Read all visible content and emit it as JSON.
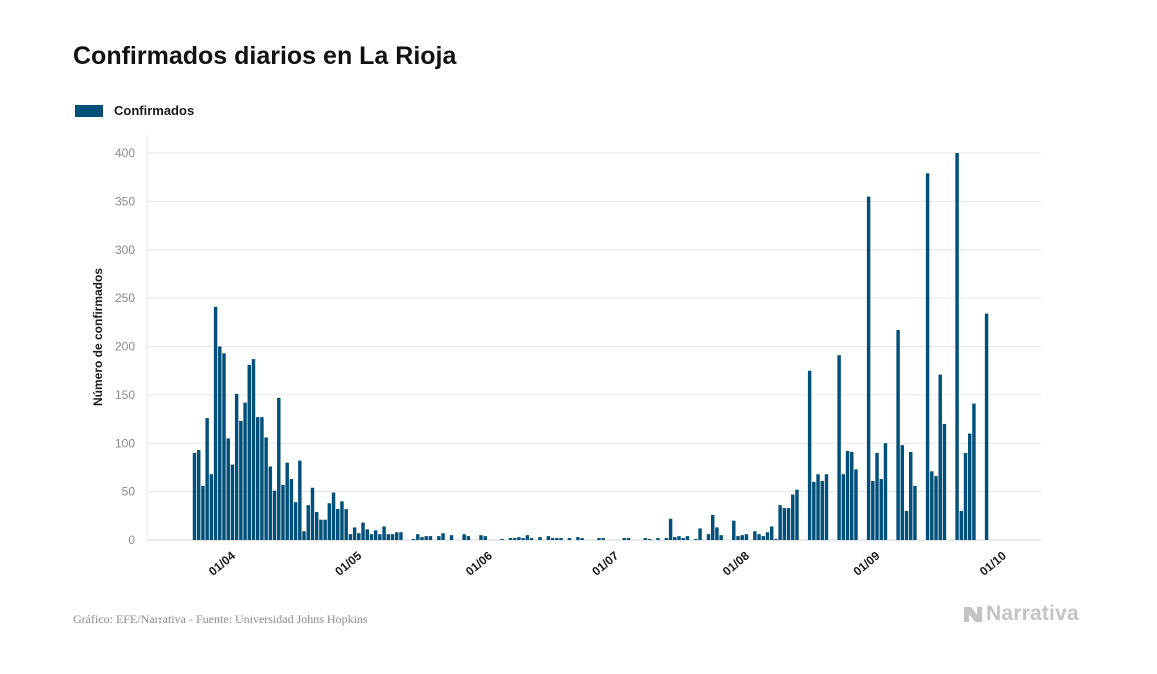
{
  "chart_data": {
    "type": "bar",
    "title": "Confirmados diarios en La Rioja",
    "ylabel": "Número de confirmados",
    "xlabel": "",
    "ylim": [
      0,
      400
    ],
    "yticks": [
      0,
      50,
      100,
      150,
      200,
      250,
      300,
      350,
      400
    ],
    "grid": true,
    "legend_position": "top-left",
    "color": "#00507a",
    "x_ticks": [
      {
        "label": "01/04",
        "date": "2020-04-01"
      },
      {
        "label": "01/05",
        "date": "2020-05-01"
      },
      {
        "label": "01/06",
        "date": "2020-06-01"
      },
      {
        "label": "01/07",
        "date": "2020-07-01"
      },
      {
        "label": "01/08",
        "date": "2020-08-01"
      },
      {
        "label": "01/09",
        "date": "2020-09-01"
      },
      {
        "label": "01/10",
        "date": "2020-10-01"
      }
    ],
    "series": [
      {
        "name": "Confirmados",
        "points": [
          [
            "2020-03-25",
            90
          ],
          [
            "2020-03-26",
            93
          ],
          [
            "2020-03-27",
            56
          ],
          [
            "2020-03-28",
            126
          ],
          [
            "2020-03-29",
            68
          ],
          [
            "2020-03-30",
            241
          ],
          [
            "2020-03-31",
            200
          ],
          [
            "2020-04-01",
            193
          ],
          [
            "2020-04-02",
            105
          ],
          [
            "2020-04-03",
            78
          ],
          [
            "2020-04-04",
            151
          ],
          [
            "2020-04-05",
            123
          ],
          [
            "2020-04-06",
            142
          ],
          [
            "2020-04-07",
            181
          ],
          [
            "2020-04-08",
            187
          ],
          [
            "2020-04-09",
            127
          ],
          [
            "2020-04-10",
            127
          ],
          [
            "2020-04-11",
            106
          ],
          [
            "2020-04-12",
            76
          ],
          [
            "2020-04-13",
            51
          ],
          [
            "2020-04-14",
            147
          ],
          [
            "2020-04-15",
            57
          ],
          [
            "2020-04-16",
            80
          ],
          [
            "2020-04-17",
            63
          ],
          [
            "2020-04-18",
            39
          ],
          [
            "2020-04-19",
            82
          ],
          [
            "2020-04-20",
            9
          ],
          [
            "2020-04-21",
            36
          ],
          [
            "2020-04-22",
            54
          ],
          [
            "2020-04-23",
            29
          ],
          [
            "2020-04-24",
            21
          ],
          [
            "2020-04-25",
            21
          ],
          [
            "2020-04-26",
            38
          ],
          [
            "2020-04-27",
            49
          ],
          [
            "2020-04-28",
            32
          ],
          [
            "2020-04-29",
            40
          ],
          [
            "2020-04-30",
            32
          ],
          [
            "2020-05-01",
            6
          ],
          [
            "2020-05-02",
            13
          ],
          [
            "2020-05-03",
            7
          ],
          [
            "2020-05-04",
            18
          ],
          [
            "2020-05-05",
            11
          ],
          [
            "2020-05-06",
            6
          ],
          [
            "2020-05-07",
            10
          ],
          [
            "2020-05-08",
            6
          ],
          [
            "2020-05-09",
            14
          ],
          [
            "2020-05-10",
            6
          ],
          [
            "2020-05-11",
            6
          ],
          [
            "2020-05-12",
            8
          ],
          [
            "2020-05-13",
            8
          ],
          [
            "2020-05-16",
            1
          ],
          [
            "2020-05-17",
            6
          ],
          [
            "2020-05-18",
            3
          ],
          [
            "2020-05-19",
            4
          ],
          [
            "2020-05-20",
            4
          ],
          [
            "2020-05-22",
            4
          ],
          [
            "2020-05-23",
            7
          ],
          [
            "2020-05-25",
            5
          ],
          [
            "2020-05-28",
            6
          ],
          [
            "2020-05-29",
            4
          ],
          [
            "2020-06-01",
            5
          ],
          [
            "2020-06-02",
            4
          ],
          [
            "2020-06-06",
            1
          ],
          [
            "2020-06-08",
            2
          ],
          [
            "2020-06-09",
            2
          ],
          [
            "2020-06-10",
            3
          ],
          [
            "2020-06-11",
            2
          ],
          [
            "2020-06-12",
            5
          ],
          [
            "2020-06-13",
            2
          ],
          [
            "2020-06-15",
            3
          ],
          [
            "2020-06-17",
            4
          ],
          [
            "2020-06-18",
            2
          ],
          [
            "2020-06-19",
            2
          ],
          [
            "2020-06-20",
            2
          ],
          [
            "2020-06-22",
            2
          ],
          [
            "2020-06-24",
            3
          ],
          [
            "2020-06-25",
            2
          ],
          [
            "2020-06-29",
            2
          ],
          [
            "2020-06-30",
            2
          ],
          [
            "2020-07-05",
            2
          ],
          [
            "2020-07-06",
            2
          ],
          [
            "2020-07-10",
            2
          ],
          [
            "2020-07-11",
            1
          ],
          [
            "2020-07-13",
            2
          ],
          [
            "2020-07-15",
            2
          ],
          [
            "2020-07-16",
            22
          ],
          [
            "2020-07-17",
            3
          ],
          [
            "2020-07-18",
            4
          ],
          [
            "2020-07-19",
            2
          ],
          [
            "2020-07-20",
            4
          ],
          [
            "2020-07-22",
            1
          ],
          [
            "2020-07-23",
            12
          ],
          [
            "2020-07-25",
            6
          ],
          [
            "2020-07-26",
            26
          ],
          [
            "2020-07-27",
            13
          ],
          [
            "2020-07-28",
            5
          ],
          [
            "2020-07-31",
            20
          ],
          [
            "2020-08-01",
            4
          ],
          [
            "2020-08-02",
            5
          ],
          [
            "2020-08-03",
            6
          ],
          [
            "2020-08-05",
            9
          ],
          [
            "2020-08-06",
            6
          ],
          [
            "2020-08-07",
            4
          ],
          [
            "2020-08-08",
            8
          ],
          [
            "2020-08-09",
            14
          ],
          [
            "2020-08-10",
            1
          ],
          [
            "2020-08-11",
            36
          ],
          [
            "2020-08-12",
            33
          ],
          [
            "2020-08-13",
            33
          ],
          [
            "2020-08-14",
            47
          ],
          [
            "2020-08-15",
            52
          ],
          [
            "2020-08-18",
            175
          ],
          [
            "2020-08-19",
            60
          ],
          [
            "2020-08-20",
            68
          ],
          [
            "2020-08-21",
            61
          ],
          [
            "2020-08-22",
            68
          ],
          [
            "2020-08-25",
            191
          ],
          [
            "2020-08-26",
            68
          ],
          [
            "2020-08-27",
            92
          ],
          [
            "2020-08-28",
            91
          ],
          [
            "2020-08-29",
            73
          ],
          [
            "2020-09-01",
            355
          ],
          [
            "2020-09-02",
            61
          ],
          [
            "2020-09-03",
            90
          ],
          [
            "2020-09-04",
            63
          ],
          [
            "2020-09-05",
            100
          ],
          [
            "2020-09-08",
            217
          ],
          [
            "2020-09-09",
            98
          ],
          [
            "2020-09-10",
            30
          ],
          [
            "2020-09-11",
            91
          ],
          [
            "2020-09-12",
            56
          ],
          [
            "2020-09-15",
            379
          ],
          [
            "2020-09-16",
            71
          ],
          [
            "2020-09-17",
            66
          ],
          [
            "2020-09-18",
            171
          ],
          [
            "2020-09-19",
            120
          ],
          [
            "2020-09-22",
            400
          ],
          [
            "2020-09-23",
            30
          ],
          [
            "2020-09-24",
            90
          ],
          [
            "2020-09-25",
            110
          ],
          [
            "2020-09-26",
            141
          ],
          [
            "2020-09-29",
            234
          ]
        ]
      }
    ]
  },
  "footer": {
    "source": "Gráfico: EFE/Narrativa - Fuente: Universidad Johns Hopkins",
    "brand": "Narrativa"
  },
  "colors": {
    "bar": "#00507a",
    "grid": "#e6e6e6",
    "tick_text": "#8a8a8a",
    "brand": "#c4c4c4"
  }
}
